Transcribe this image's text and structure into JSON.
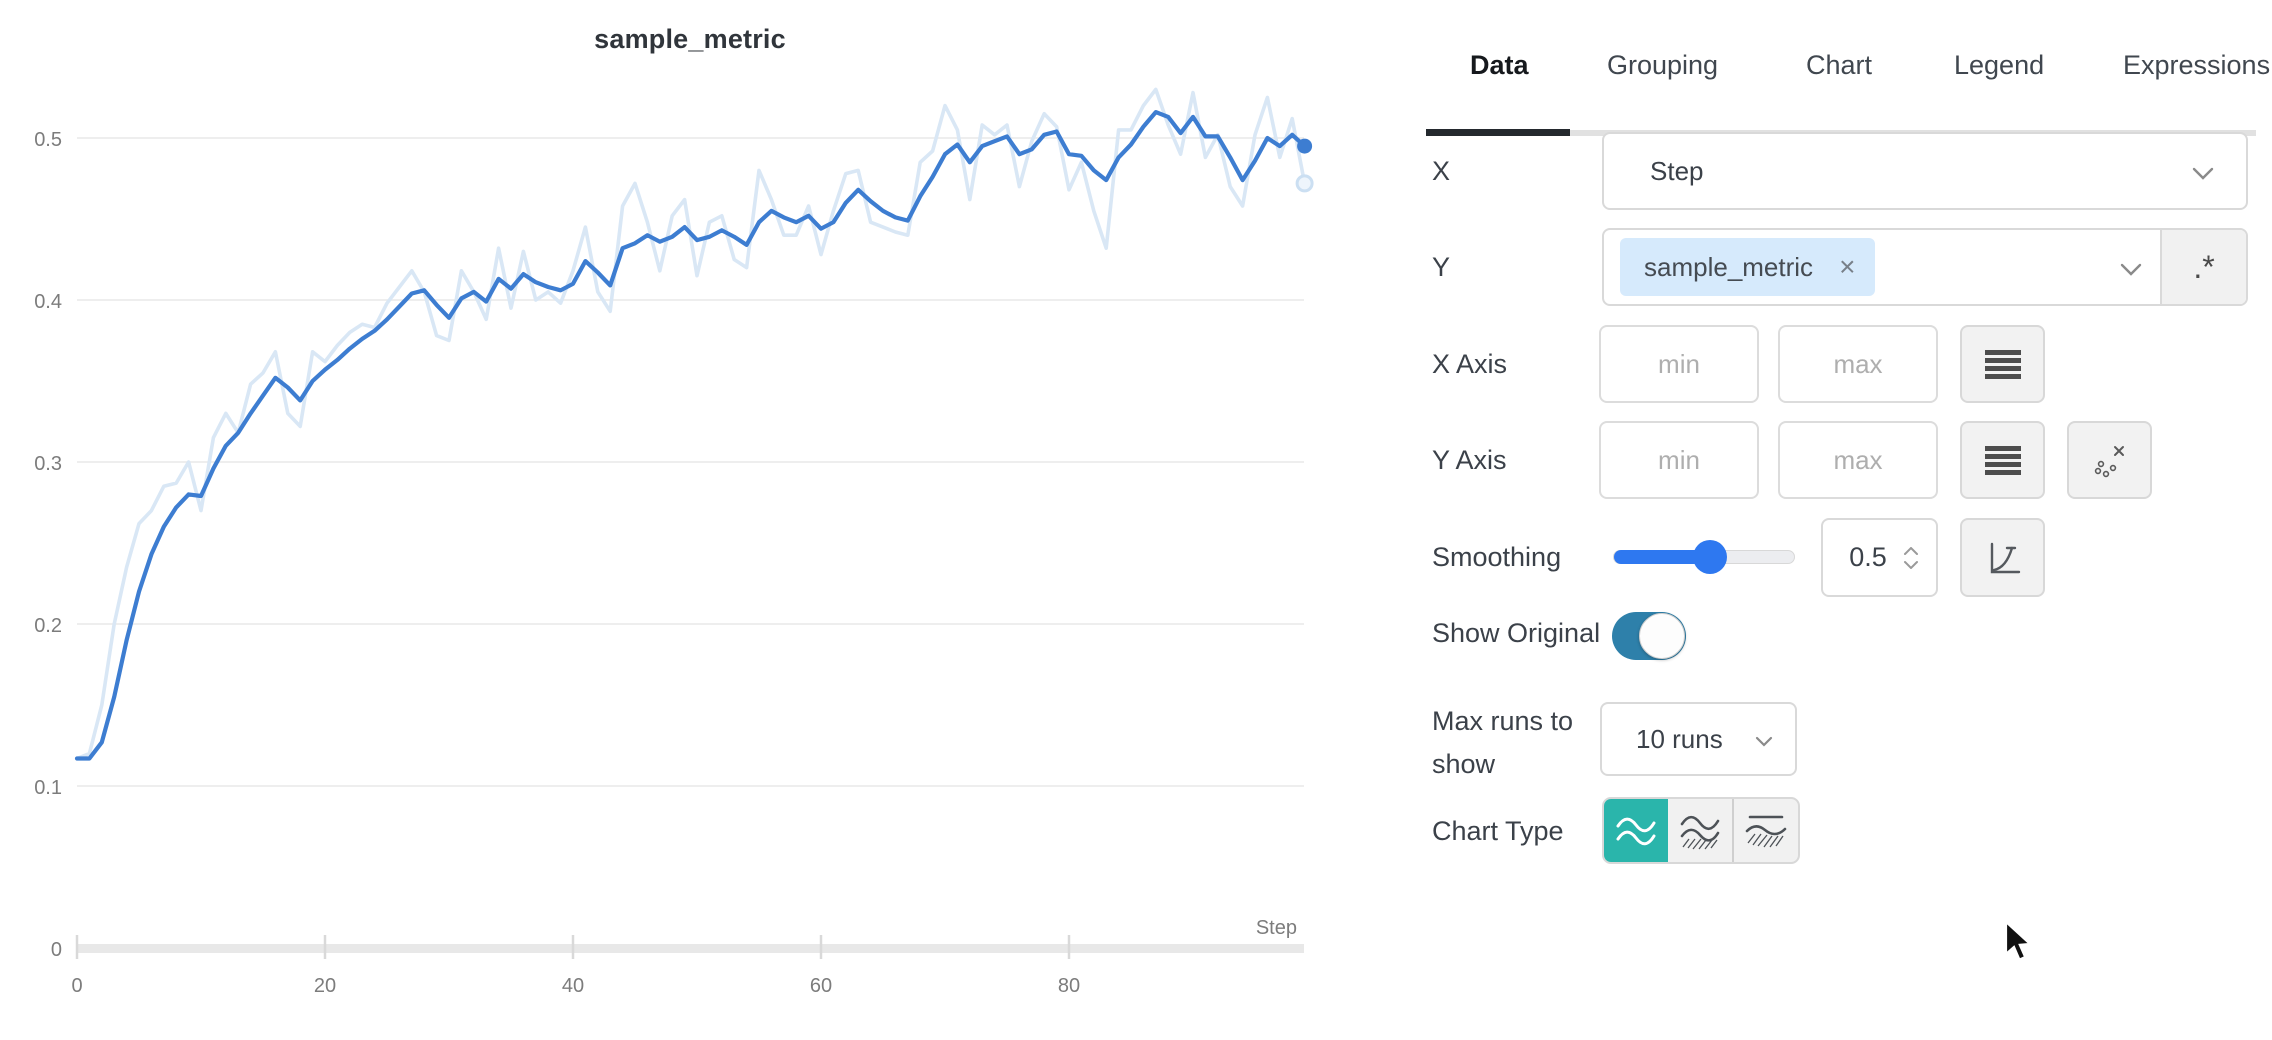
{
  "chart": {
    "title": "sample_metric"
  },
  "chart_data": {
    "type": "line",
    "title": "sample_metric",
    "xlabel": "Step",
    "ylabel": "",
    "xlim": [
      0,
      99
    ],
    "ylim": [
      0,
      0.585
    ],
    "grid": "horizontal",
    "x_ticks": {
      "values": [
        0,
        20,
        40,
        60,
        80
      ],
      "labels": [
        "0",
        "20",
        "40",
        "60",
        "80"
      ]
    },
    "y_ticks": {
      "values": [
        0,
        0.1,
        0.2,
        0.3,
        0.4,
        0.5
      ],
      "labels": [
        "0",
        "0.1",
        "0.2",
        "0.3",
        "0.4",
        "0.5"
      ]
    },
    "series": [
      {
        "name": "sample_metric (original)",
        "role": "original",
        "color": "#d9e7f5",
        "end_dot": "hollow",
        "values": [
          0.117,
          0.12,
          0.15,
          0.2,
          0.235,
          0.262,
          0.27,
          0.285,
          0.287,
          0.3,
          0.27,
          0.315,
          0.33,
          0.318,
          0.348,
          0.355,
          0.368,
          0.33,
          0.322,
          0.368,
          0.362,
          0.372,
          0.38,
          0.385,
          0.383,
          0.398,
          0.408,
          0.418,
          0.405,
          0.378,
          0.375,
          0.418,
          0.405,
          0.388,
          0.432,
          0.395,
          0.43,
          0.4,
          0.405,
          0.398,
          0.418,
          0.445,
          0.405,
          0.393,
          0.458,
          0.472,
          0.448,
          0.418,
          0.452,
          0.462,
          0.415,
          0.448,
          0.452,
          0.425,
          0.42,
          0.48,
          0.462,
          0.44,
          0.44,
          0.458,
          0.428,
          0.455,
          0.478,
          0.48,
          0.448,
          0.445,
          0.442,
          0.44,
          0.485,
          0.492,
          0.52,
          0.505,
          0.462,
          0.508,
          0.502,
          0.508,
          0.47,
          0.498,
          0.515,
          0.507,
          0.468,
          0.485,
          0.455,
          0.432,
          0.505,
          0.505,
          0.52,
          0.53,
          0.508,
          0.49,
          0.528,
          0.488,
          0.502,
          0.47,
          0.458,
          0.502,
          0.525,
          0.488,
          0.512,
          0.472
        ]
      },
      {
        "name": "sample_metric (smoothed 0.5)",
        "role": "smoothed",
        "color": "#3d7dd1",
        "end_dot": "solid",
        "values": [
          0.117,
          0.117,
          0.127,
          0.155,
          0.19,
          0.22,
          0.243,
          0.26,
          0.272,
          0.28,
          0.279,
          0.296,
          0.31,
          0.318,
          0.33,
          0.341,
          0.352,
          0.346,
          0.338,
          0.35,
          0.357,
          0.363,
          0.37,
          0.376,
          0.381,
          0.388,
          0.396,
          0.404,
          0.406,
          0.397,
          0.389,
          0.401,
          0.405,
          0.399,
          0.413,
          0.407,
          0.416,
          0.411,
          0.408,
          0.406,
          0.41,
          0.424,
          0.417,
          0.409,
          0.432,
          0.435,
          0.44,
          0.436,
          0.439,
          0.445,
          0.437,
          0.439,
          0.443,
          0.439,
          0.434,
          0.448,
          0.455,
          0.451,
          0.448,
          0.452,
          0.444,
          0.448,
          0.46,
          0.468,
          0.461,
          0.455,
          0.451,
          0.449,
          0.464,
          0.476,
          0.49,
          0.496,
          0.485,
          0.495,
          0.498,
          0.501,
          0.49,
          0.493,
          0.502,
          0.504,
          0.49,
          0.489,
          0.48,
          0.474,
          0.488,
          0.496,
          0.507,
          0.516,
          0.513,
          0.503,
          0.513,
          0.501,
          0.501,
          0.488,
          0.474,
          0.486,
          0.5,
          0.495,
          0.502,
          0.495
        ]
      }
    ]
  },
  "panel": {
    "tabs": [
      "Data",
      "Grouping",
      "Chart",
      "Legend",
      "Expressions"
    ],
    "active_tab": "Data",
    "x_row": {
      "label": "X",
      "value": "Step"
    },
    "y_row": {
      "label": "Y",
      "selected_metric": "sample_metric",
      "remove_label": "×",
      "regex_button": ".*"
    },
    "x_axis_row": {
      "label": "X Axis",
      "min_placeholder": "min",
      "max_placeholder": "max"
    },
    "y_axis_row": {
      "label": "Y Axis",
      "min_placeholder": "min",
      "max_placeholder": "max"
    },
    "smoothing_row": {
      "label": "Smoothing",
      "value": "0.5"
    },
    "show_original_row": {
      "label": "Show Original",
      "enabled": true
    },
    "max_runs_row": {
      "label": "Max runs to show",
      "value": "10 runs"
    },
    "chart_type_row": {
      "label": "Chart Type",
      "selected_index": 0,
      "options": [
        "line",
        "area",
        "min-max-area"
      ]
    },
    "colors": {
      "accent_blue": "#2e78f0",
      "toggle_blue": "#2e80aa",
      "selected_teal": "#2ab5ab",
      "tag_bg": "#d6eafc",
      "smoothed_line": "#3d7dd1",
      "original_line": "#d9e7f5"
    }
  }
}
